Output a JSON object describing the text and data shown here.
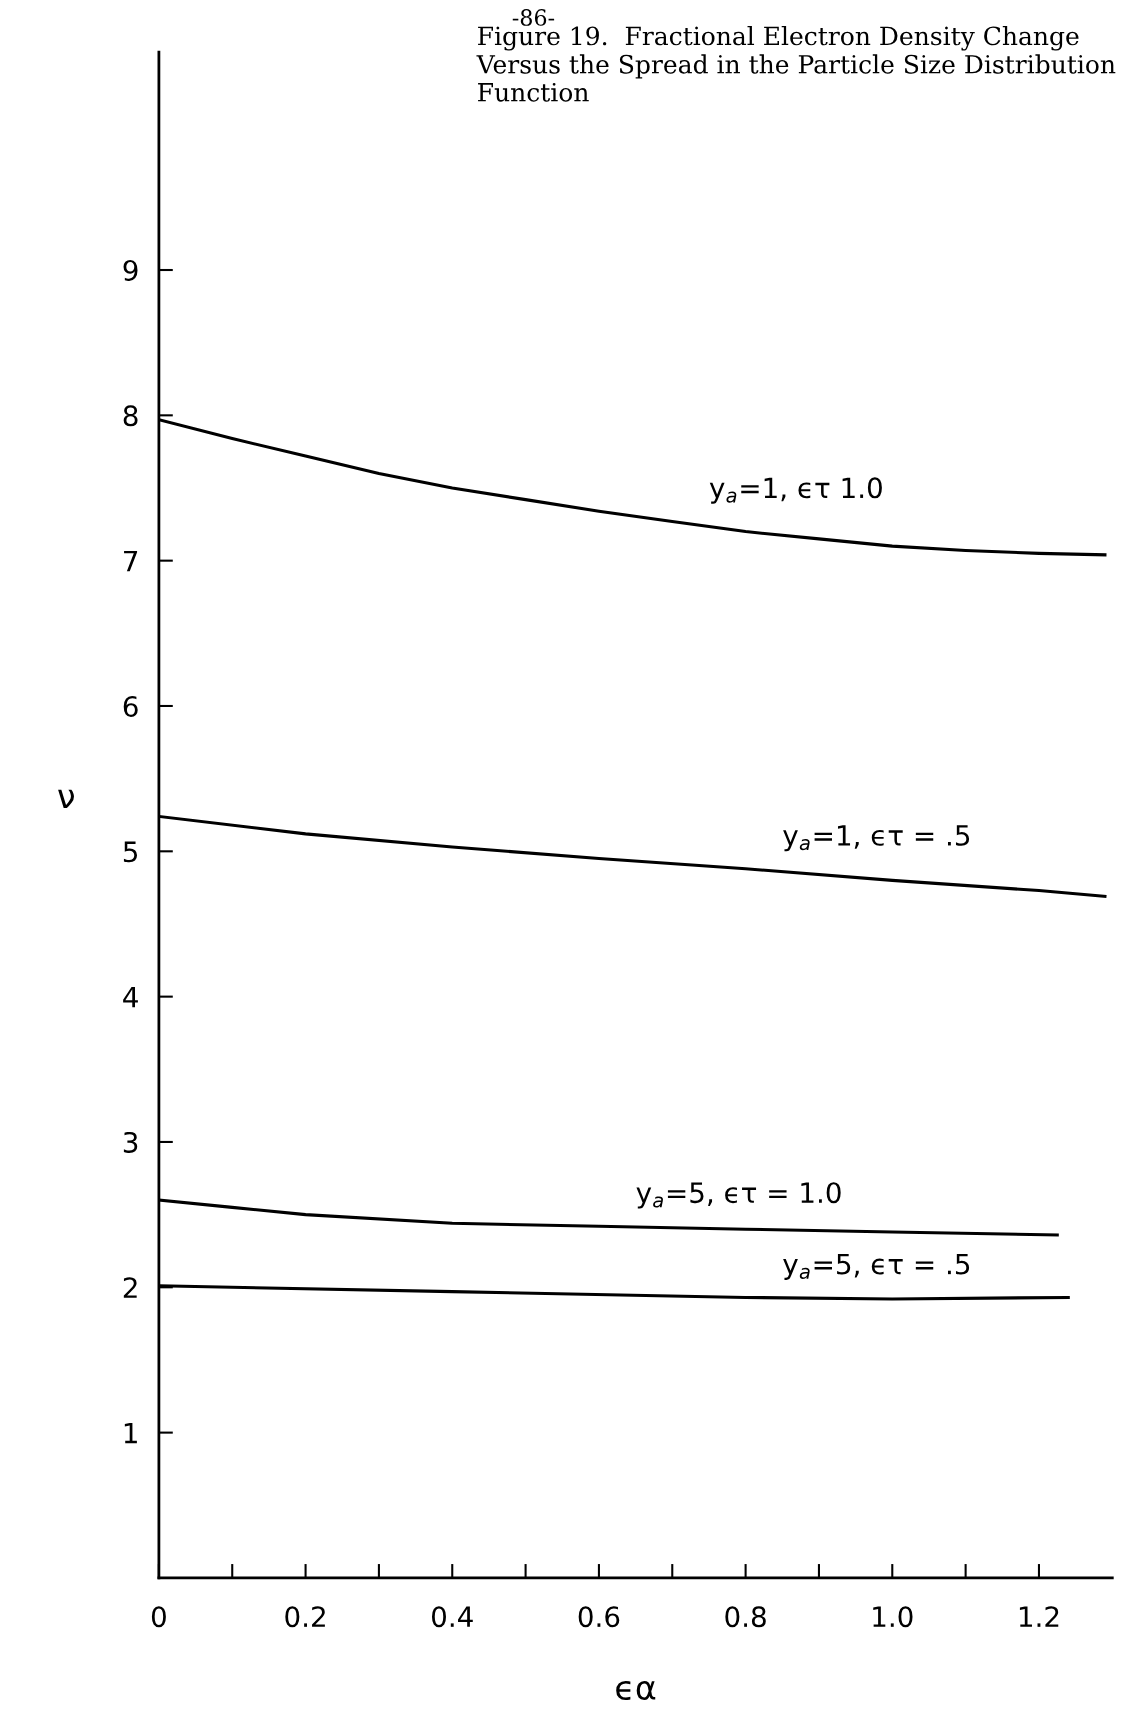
{
  "chart_data": {
    "type": "line",
    "title": "Figure 19.  Fractional Electron Density Change Versus the Spread in the Particle Size Distribution Function",
    "xlabel": "ϵα",
    "ylabel": "ν",
    "annotations": [
      "-86-"
    ],
    "xlim": [
      0,
      1.3
    ],
    "ylim": [
      0,
      10.5
    ],
    "xticks": [
      0,
      {
        "value": 0.1,
        "label": null
      },
      0.2,
      {
        "value": 0.3,
        "label": null
      },
      0.4,
      {
        "value": 0.5,
        "label": null
      },
      0.6,
      {
        "value": 0.7,
        "label": null
      },
      0.8,
      {
        "value": 0.9,
        "label": null
      },
      {
        "value": 1.0,
        "label": "1.0"
      },
      {
        "value": 1.1,
        "label": null
      },
      1.2
    ],
    "yticks": [
      1,
      2,
      3,
      4,
      5,
      6,
      7,
      8,
      9
    ],
    "grid": false,
    "legend": false,
    "marker": "none",
    "line_style": "solid",
    "series": [
      {
        "name": "y$_{a}$=1, ϵτ 1.0",
        "color": "#000000",
        "x": [
          0,
          0.1,
          0.2,
          0.3,
          0.4,
          0.5,
          0.6,
          0.7,
          0.8,
          0.9,
          1.0,
          1.1,
          1.2,
          1.29
        ],
        "values": [
          7.97,
          7.84,
          7.72,
          7.6,
          7.5,
          7.42,
          7.34,
          7.27,
          7.2,
          7.15,
          7.1,
          7.07,
          7.05,
          7.04
        ]
      },
      {
        "name": "y$_{a}$=1, ϵτ = .5",
        "color": "#000000",
        "x": [
          0,
          0.2,
          0.4,
          0.6,
          0.8,
          1.0,
          1.2,
          1.29
        ],
        "values": [
          5.24,
          5.12,
          5.03,
          4.95,
          4.88,
          4.8,
          4.73,
          4.69
        ]
      },
      {
        "name": "y$_{a}$=5, ϵτ = 1.0",
        "color": "#000000",
        "x": [
          0,
          0.1,
          0.2,
          0.4,
          0.6,
          0.8,
          1.0,
          1.225
        ],
        "values": [
          2.6,
          2.55,
          2.5,
          2.44,
          2.42,
          2.4,
          2.38,
          2.36
        ]
      },
      {
        "name": "y$_{a}$=5, ϵτ = .5",
        "color": "#000000",
        "x": [
          0,
          0.4,
          0.8,
          1.0,
          1.24
        ],
        "values": [
          2.01,
          1.97,
          1.93,
          1.92,
          1.93
        ]
      }
    ]
  }
}
